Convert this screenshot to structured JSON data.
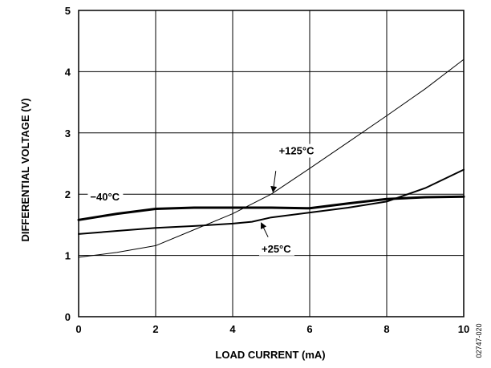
{
  "chart_data": {
    "type": "line",
    "xlabel": "LOAD CURRENT (mA)",
    "ylabel": "DIFFERENTIAL VOLTAGE (V)",
    "xlim": [
      0,
      10
    ],
    "ylim": [
      0,
      5
    ],
    "x_ticks": [
      "0",
      "2",
      "4",
      "6",
      "8",
      "10"
    ],
    "y_ticks": [
      "0",
      "1",
      "2",
      "3",
      "4",
      "5"
    ],
    "grid": true,
    "figure_id": "02747-020",
    "series": [
      {
        "name": "+125°C",
        "stroke_width": 1,
        "points": [
          [
            0,
            0.97
          ],
          [
            1,
            1.05
          ],
          [
            2,
            1.16
          ],
          [
            3,
            1.42
          ],
          [
            4,
            1.68
          ],
          [
            5,
            2.0
          ],
          [
            6,
            2.42
          ],
          [
            7,
            2.85
          ],
          [
            8,
            3.28
          ],
          [
            9,
            3.72
          ],
          [
            10,
            4.2
          ]
        ]
      },
      {
        "name": "+25°C",
        "stroke_width": 2,
        "points": [
          [
            0,
            1.35
          ],
          [
            1,
            1.4
          ],
          [
            2,
            1.45
          ],
          [
            3,
            1.48
          ],
          [
            4,
            1.52
          ],
          [
            4.5,
            1.55
          ],
          [
            5,
            1.62
          ],
          [
            6,
            1.7
          ],
          [
            7,
            1.78
          ],
          [
            8,
            1.88
          ],
          [
            9,
            2.1
          ],
          [
            10,
            2.4
          ]
        ]
      },
      {
        "name": "−40°C",
        "stroke_width": 3,
        "points": [
          [
            0,
            1.58
          ],
          [
            1,
            1.68
          ],
          [
            2,
            1.76
          ],
          [
            3,
            1.78
          ],
          [
            4,
            1.78
          ],
          [
            5,
            1.78
          ],
          [
            6,
            1.77
          ],
          [
            7,
            1.85
          ],
          [
            8,
            1.92
          ],
          [
            9,
            1.95
          ],
          [
            10,
            1.96
          ]
        ]
      }
    ],
    "annotations": [
      {
        "text": "+125°C",
        "series": "+125°C",
        "label_at": [
          5.2,
          2.65
        ],
        "arrow_from": [
          5.12,
          2.38
        ],
        "arrow_to": [
          5.05,
          2.05
        ]
      },
      {
        "text": "−40°C",
        "series": "−40°C",
        "label_at": [
          0.3,
          1.9
        ],
        "arrow_from": null,
        "arrow_to": null
      },
      {
        "text": "+25°C",
        "series": "+25°C",
        "label_at": [
          4.75,
          1.05
        ],
        "arrow_from": [
          4.92,
          1.3
        ],
        "arrow_to": [
          4.75,
          1.52
        ]
      }
    ]
  }
}
